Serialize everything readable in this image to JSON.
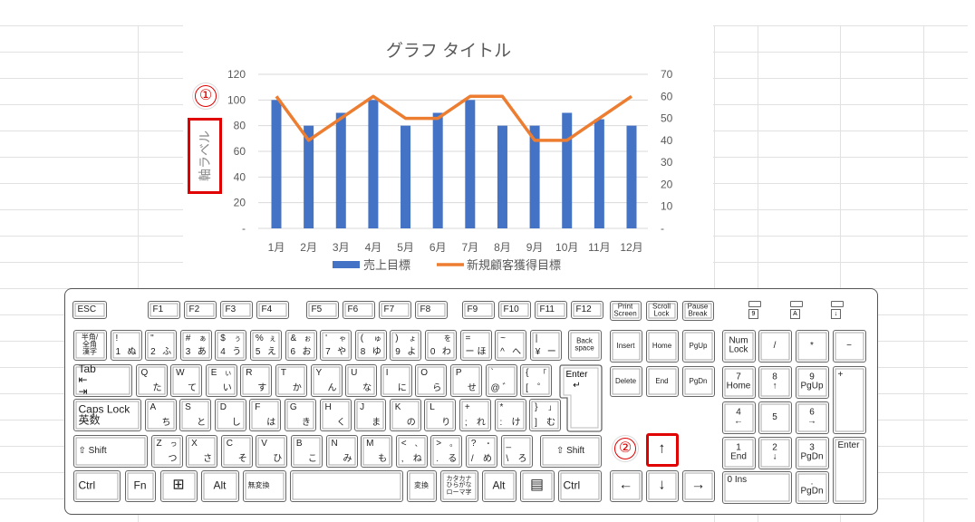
{
  "chart_data": {
    "type": "bar+line",
    "title": "グラフ タイトル",
    "ylabel": "軸ラベル",
    "categories": [
      "1月",
      "2月",
      "3月",
      "4月",
      "5月",
      "6月",
      "7月",
      "8月",
      "9月",
      "10月",
      "11月",
      "12月"
    ],
    "series": [
      {
        "name": "売上目標",
        "type": "bar",
        "axis": "left",
        "color": "#4472c4",
        "values": [
          100,
          80,
          90,
          100,
          80,
          90,
          100,
          80,
          80,
          90,
          85,
          80
        ]
      },
      {
        "name": "新規顧客獲得目標",
        "type": "line",
        "axis": "right",
        "color": "#ed7d31",
        "values": [
          60,
          40,
          50,
          60,
          50,
          50,
          60,
          60,
          40,
          40,
          50,
          60
        ]
      }
    ],
    "y_left": {
      "range": [
        0,
        120
      ],
      "ticks": [
        "-",
        "20",
        "40",
        "60",
        "80",
        "100",
        "120"
      ]
    },
    "y_right": {
      "range": [
        0,
        70
      ],
      "ticks": [
        "-",
        "10",
        "20",
        "30",
        "40",
        "50",
        "60",
        "70"
      ]
    },
    "grid": true,
    "legend": "bottom"
  },
  "annotations": {
    "circle1": "①",
    "circle2": "②",
    "highlight_color": "#e00000"
  },
  "keyboard": {
    "fn_row": [
      "ESC",
      "F1",
      "F2",
      "F3",
      "F4",
      "F5",
      "F6",
      "F7",
      "F8",
      "F9",
      "F10",
      "F11",
      "F12",
      "Print\nScreen",
      "Scroll\nLock",
      "Pause\nBreak"
    ],
    "indicators": [
      "9",
      "A",
      "↓"
    ],
    "num_row": [
      {
        "c": "半角/\n全角\n漢字"
      },
      {
        "tl": "!",
        "bl": "1",
        "br": "ぬ"
      },
      {
        "tl": "\"",
        "bl": "2",
        "br": "ふ"
      },
      {
        "tl": "#",
        "tr": "ぁ",
        "bl": "3",
        "br": "あ"
      },
      {
        "tl": "$",
        "tr": "ぅ",
        "bl": "4",
        "br": "う"
      },
      {
        "tl": "%",
        "tr": "ぇ",
        "bl": "5",
        "br": "え"
      },
      {
        "tl": "&",
        "tr": "ぉ",
        "bl": "6",
        "br": "お"
      },
      {
        "tl": "'",
        "tr": "ゃ",
        "bl": "7",
        "br": "や"
      },
      {
        "tl": "(",
        "tr": "ゅ",
        "bl": "8",
        "br": "ゆ"
      },
      {
        "tl": ")",
        "tr": "ょ",
        "bl": "9",
        "br": "よ"
      },
      {
        "tr": "を",
        "bl": "0",
        "br": "わ"
      },
      {
        "tl": "=",
        "bl": "ー",
        "br": "ほ"
      },
      {
        "tl": "~",
        "bl": "^",
        "br": "へ"
      },
      {
        "tl": "|",
        "bl": "¥",
        "br": "ー"
      },
      {
        "c": "Back\nspace"
      }
    ],
    "q_row": [
      {
        "c": "Tab\n⇤\n⇥"
      },
      {
        "tl": "Q",
        "br": "た"
      },
      {
        "tl": "W",
        "br": "て"
      },
      {
        "tl": "E",
        "tr": "ぃ",
        "br": "い"
      },
      {
        "tl": "R",
        "br": "す"
      },
      {
        "tl": "T",
        "br": "か"
      },
      {
        "tl": "Y",
        "br": "ん"
      },
      {
        "tl": "U",
        "br": "な"
      },
      {
        "tl": "I",
        "br": "に"
      },
      {
        "tl": "O",
        "br": "ら"
      },
      {
        "tl": "P",
        "br": "せ"
      },
      {
        "tl": "`",
        "bl": "@",
        "br": "゛"
      },
      {
        "tl": "{",
        "tr": "「",
        "bl": "[",
        "br": "゜"
      }
    ],
    "enter": "Enter\n↵",
    "a_row": [
      {
        "c": "Caps Lock\n英数"
      },
      {
        "tl": "A",
        "br": "ち"
      },
      {
        "tl": "S",
        "br": "と"
      },
      {
        "tl": "D",
        "br": "し"
      },
      {
        "tl": "F",
        "br": "は"
      },
      {
        "tl": "G",
        "br": "き"
      },
      {
        "tl": "H",
        "br": "く"
      },
      {
        "tl": "J",
        "br": "ま"
      },
      {
        "tl": "K",
        "br": "の"
      },
      {
        "tl": "L",
        "br": "り"
      },
      {
        "tl": "+",
        "bl": ";",
        "br": "れ"
      },
      {
        "tl": "*",
        "bl": ":",
        "br": "け"
      },
      {
        "tl": "}",
        "tr": "」",
        "bl": "]",
        "br": "む"
      }
    ],
    "z_row": [
      {
        "c": "⇧ Shift"
      },
      {
        "tl": "Z",
        "tr": "っ",
        "br": "つ"
      },
      {
        "tl": "X",
        "br": "さ"
      },
      {
        "tl": "C",
        "br": "そ"
      },
      {
        "tl": "V",
        "br": "ひ"
      },
      {
        "tl": "B",
        "br": "こ"
      },
      {
        "tl": "N",
        "br": "み"
      },
      {
        "tl": "M",
        "br": "も"
      },
      {
        "tl": "<",
        "tr": "、",
        "bl": ",",
        "br": "ね"
      },
      {
        "tl": ">",
        "tr": "。",
        "bl": ".",
        "br": "る"
      },
      {
        "tl": "?",
        "tr": "・",
        "bl": "/",
        "br": "め"
      },
      {
        "tl": "_",
        "bl": "\\",
        "br": "ろ"
      },
      {
        "c": "⇧ Shift"
      }
    ],
    "bottom_row": [
      "Ctrl",
      "Fn",
      "⊞",
      "Alt",
      "無変換",
      "",
      "変換",
      "カタカナ\nひらがな\nローマ字",
      "Alt",
      "▤",
      "Ctrl"
    ],
    "nav": [
      "Insert",
      "Home",
      "PgUp",
      "Delete",
      "End",
      "PgDn"
    ],
    "arrows": [
      "↑",
      "←",
      "↓",
      "→"
    ],
    "numpad": [
      "Num\nLock",
      "/",
      "*",
      "−",
      "7\nHome",
      "8\n↑",
      "9\nPgUp",
      "+",
      "4\n←",
      "5",
      "6\n→",
      "1\nEnd",
      "2\n↓",
      "3\nPgDn",
      "Enter",
      "0\nIns",
      ".\nPgDn"
    ]
  }
}
